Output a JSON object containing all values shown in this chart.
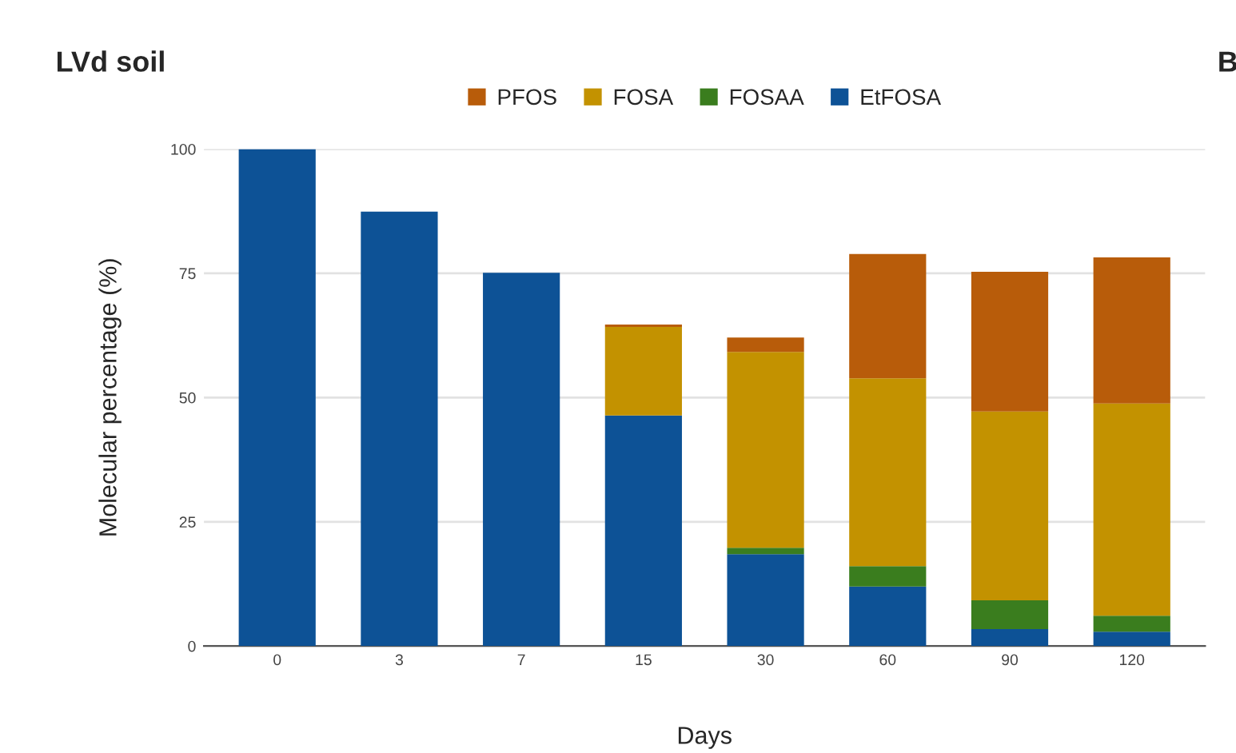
{
  "chart_data": {
    "type": "bar",
    "title": "LVd soil",
    "xlabel": "Days",
    "ylabel": "Molecular percentage (%)",
    "categories": [
      "0",
      "3",
      "7",
      "15",
      "30",
      "60",
      "90",
      "120"
    ],
    "stacked": true,
    "series": [
      {
        "name": "EtFOSA",
        "color": "#0d5296",
        "values": [
          100,
          87.4,
          75.1,
          46.4,
          18.5,
          12.0,
          3.4,
          2.9
        ]
      },
      {
        "name": "FOSAA",
        "color": "#3a7d1e",
        "values": [
          0,
          0,
          0,
          0,
          1.3,
          4.1,
          5.8,
          3.2
        ]
      },
      {
        "name": "FOSA",
        "color": "#c39200",
        "values": [
          0,
          0,
          0,
          17.8,
          39.4,
          37.8,
          38.0,
          42.7
        ]
      },
      {
        "name": "PFOS",
        "color": "#b85c0a",
        "values": [
          0,
          0,
          0,
          0.5,
          2.9,
          25.0,
          28.1,
          29.4
        ]
      }
    ],
    "ylim": [
      0,
      100
    ],
    "yticks": [
      0,
      25,
      50,
      75,
      100
    ],
    "grid": "y",
    "legend": "top",
    "annotations": [
      "B"
    ]
  }
}
